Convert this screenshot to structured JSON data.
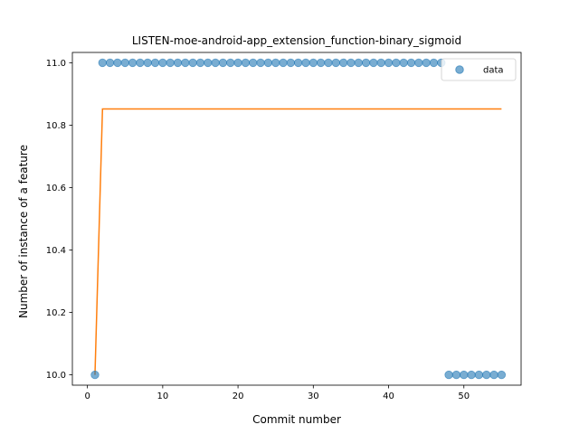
{
  "chart_data": {
    "type": "scatter",
    "title": "LISTEN-moe-android-app_extension_function-binary_sigmoid",
    "xlabel": "Commit number",
    "ylabel": "Number of instance of a feature",
    "xlim": [
      -2,
      57.6
    ],
    "ylim": [
      9.967,
      11.033
    ],
    "xticks": [
      0,
      10,
      20,
      30,
      40,
      50
    ],
    "yticks": [
      10.0,
      10.2,
      10.4,
      10.6,
      10.8,
      11.0
    ],
    "ytick_labels": [
      "10.0",
      "10.2",
      "10.4",
      "10.6",
      "10.8",
      "11.0"
    ],
    "grid": false,
    "legend": {
      "placement": "top-right",
      "entries": [
        {
          "label": "data",
          "marker": "circle"
        }
      ]
    },
    "series": [
      {
        "name": "data",
        "kind": "scatter",
        "color": "#1f77b4",
        "x": [
          1,
          2,
          3,
          4,
          5,
          6,
          7,
          8,
          9,
          10,
          11,
          12,
          13,
          14,
          15,
          16,
          17,
          18,
          19,
          20,
          21,
          22,
          23,
          24,
          25,
          26,
          27,
          28,
          29,
          30,
          31,
          32,
          33,
          34,
          35,
          36,
          37,
          38,
          39,
          40,
          41,
          42,
          43,
          44,
          45,
          46,
          47,
          48,
          49,
          50,
          51,
          52,
          53,
          54,
          55
        ],
        "y": [
          10,
          11,
          11,
          11,
          11,
          11,
          11,
          11,
          11,
          11,
          11,
          11,
          11,
          11,
          11,
          11,
          11,
          11,
          11,
          11,
          11,
          11,
          11,
          11,
          11,
          11,
          11,
          11,
          11,
          11,
          11,
          11,
          11,
          11,
          11,
          11,
          11,
          11,
          11,
          11,
          11,
          11,
          11,
          11,
          11,
          11,
          11,
          10,
          10,
          10,
          10,
          10,
          10,
          10,
          10
        ]
      },
      {
        "kind": "line",
        "color": "#ff7f0e",
        "x": [
          1,
          2,
          55
        ],
        "y": [
          10.0,
          10.852,
          10.852
        ]
      }
    ]
  }
}
